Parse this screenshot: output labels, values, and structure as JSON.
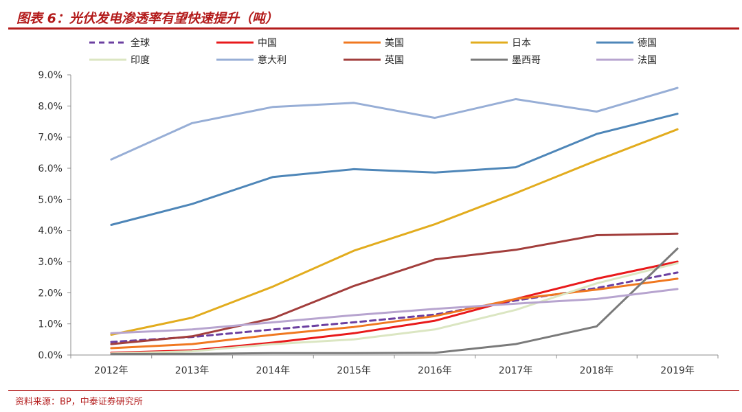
{
  "header": {
    "title": "图表 6：光伏发电渗透率有望快速提升（吨）"
  },
  "footer": {
    "source": "资料来源：BP，中泰证券研究所"
  },
  "colors": {
    "accent": "#b31b1b"
  },
  "chart_data": {
    "type": "line",
    "title": "",
    "xlabel": "",
    "ylabel": "",
    "categories": [
      "2012年",
      "2013年",
      "2014年",
      "2015年",
      "2016年",
      "2017年",
      "2018年",
      "2019年"
    ],
    "ylim": [
      0,
      9
    ],
    "yticks": [
      "0.0%",
      "1.0%",
      "2.0%",
      "3.0%",
      "4.0%",
      "5.0%",
      "6.0%",
      "7.0%",
      "8.0%",
      "9.0%"
    ],
    "y_unit": "%",
    "grid": false,
    "legend_position": "top",
    "series": [
      {
        "name": "全球",
        "color": "#6b3fa0",
        "dashed": true,
        "values": [
          0.42,
          0.58,
          0.82,
          1.05,
          1.3,
          1.75,
          2.15,
          2.65
        ]
      },
      {
        "name": "中国",
        "color": "#e8191b",
        "dashed": false,
        "values": [
          0.07,
          0.15,
          0.4,
          0.7,
          1.1,
          1.8,
          2.45,
          3.0
        ]
      },
      {
        "name": "美国",
        "color": "#f07820",
        "dashed": false,
        "values": [
          0.22,
          0.35,
          0.65,
          0.9,
          1.25,
          1.8,
          2.1,
          2.45
        ]
      },
      {
        "name": "日本",
        "color": "#e2ac1e",
        "dashed": false,
        "values": [
          0.65,
          1.2,
          2.2,
          3.35,
          4.2,
          5.2,
          6.25,
          7.25
        ]
      },
      {
        "name": "德国",
        "color": "#4e86b8",
        "dashed": false,
        "values": [
          4.18,
          4.85,
          5.72,
          5.97,
          5.86,
          6.03,
          7.1,
          7.75
        ]
      },
      {
        "name": "印度",
        "color": "#dbe6c2",
        "dashed": false,
        "values": [
          0.05,
          0.12,
          0.35,
          0.5,
          0.82,
          1.45,
          2.3,
          2.95
        ]
      },
      {
        "name": "意大利",
        "color": "#97aed6",
        "dashed": false,
        "values": [
          6.28,
          7.45,
          7.97,
          8.1,
          7.62,
          8.22,
          7.82,
          8.58
        ]
      },
      {
        "name": "英国",
        "color": "#a23e3c",
        "dashed": false,
        "values": [
          0.35,
          0.6,
          1.18,
          2.22,
          3.07,
          3.38,
          3.85,
          3.9
        ]
      },
      {
        "name": "墨西哥",
        "color": "#7a7a7a",
        "dashed": false,
        "values": [
          0.03,
          0.04,
          0.06,
          0.06,
          0.07,
          0.35,
          0.92,
          3.42
        ]
      },
      {
        "name": "法国",
        "color": "#b7a4cf",
        "dashed": false,
        "values": [
          0.7,
          0.82,
          1.05,
          1.28,
          1.48,
          1.65,
          1.8,
          2.12
        ]
      }
    ]
  }
}
